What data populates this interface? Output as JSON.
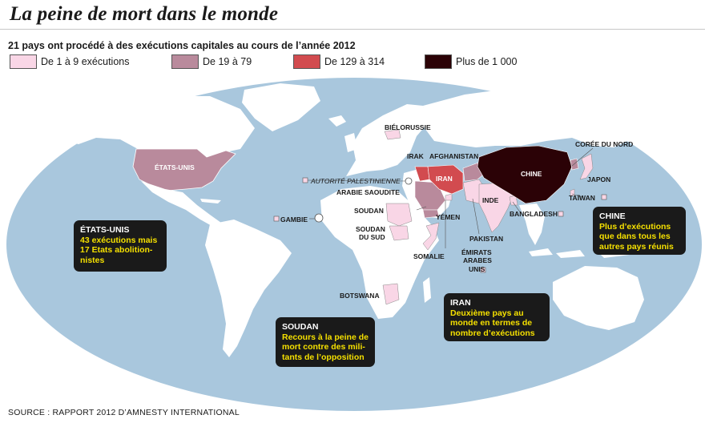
{
  "title": "La peine de mort dans le monde",
  "subtitle": "21 pays ont procédé à des exécutions capitales au cours de l’année 2012",
  "legend": [
    {
      "label": "De 1 à 9 exécutions",
      "color": "#f9d6e6"
    },
    {
      "label": "De 19 à 79",
      "color": "#b98a9c"
    },
    {
      "label": "De 129 à 314",
      "color": "#d24b4f"
    },
    {
      "label": "Plus de 1 000",
      "color": "#2b0206"
    }
  ],
  "colors": {
    "ocean": "#a9c7dd",
    "land": "#ffffff"
  },
  "countries": {
    "etats_unis": "ÉTATS-UNIS",
    "bielorussie": "BIÉLORUSSIE",
    "irak": "IRAK",
    "afghanistan": "AFGHANISTAN",
    "iran": "IRAN",
    "chine": "CHINE",
    "coree_du_nord": "CORÉE DU NORD",
    "japon": "JAPON",
    "taiwan": "TAÏWAN",
    "autorite_palestinienne": "AUTORITÉ PALESTINIENNE",
    "arabie_saoudite": "ARABIE SAOUDITE",
    "inde": "INDE",
    "gambie": "GAMBIE",
    "soudan": "SOUDAN",
    "yemen": "YÉMEN",
    "bangladesh": "BANGLADESH",
    "soudan_du_sud_1": "SOUDAN",
    "soudan_du_sud_2": "DU SUD",
    "pakistan": "PAKISTAN",
    "somalie": "SOMALIE",
    "emirats_1": "ÉMIRATS",
    "emirats_2": "ARABES",
    "emirats_3": "UNIS",
    "botswana": "BOTSWANA"
  },
  "callouts": {
    "usa": {
      "heading": "ÉTATS-UNIS",
      "lines": [
        "43 exécutions mais",
        "17 Etats abolition-",
        "nistes"
      ]
    },
    "chine": {
      "heading": "CHINE",
      "lines": [
        "Plus d’exécutions",
        "que dans tous les",
        "autres pays réunis"
      ]
    },
    "iran": {
      "heading": "IRAN",
      "lines": [
        "Deuxième pays au",
        "monde en termes de",
        "nombre d’exécutions"
      ]
    },
    "soudan": {
      "heading": "SOUDAN",
      "lines": [
        "Recours à la peine de",
        "mort contre des mili-",
        "tants de l’opposition"
      ]
    }
  },
  "source": "SOURCE : RAPPORT 2012 D’AMNESTY INTERNATIONAL"
}
